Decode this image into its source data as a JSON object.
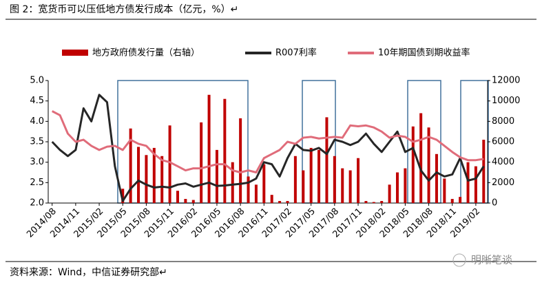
{
  "header": {
    "title": "图 2：宽货币可以压低地方债发行成本（亿元，%）↵"
  },
  "chart_data": {
    "type": "bar-line",
    "categories": [
      "2014/08",
      null,
      null,
      "2014/11",
      null,
      null,
      "2015/02",
      null,
      null,
      "2015/05",
      null,
      null,
      "2015/08",
      null,
      null,
      "2015/11",
      null,
      null,
      "2016/02",
      null,
      null,
      "2016/05",
      null,
      null,
      "2016/08",
      null,
      null,
      "2016/11",
      null,
      null,
      "2017/02",
      null,
      null,
      "2017/05",
      null,
      null,
      "2017/08",
      null,
      null,
      "2017/11",
      null,
      null,
      "2018/02",
      null,
      null,
      "2018/05",
      null,
      null,
      "2018/08",
      null,
      null,
      "2018/11",
      null,
      null,
      "2019/02",
      null
    ],
    "series": [
      {
        "name": "地方政府债发行量（右轴）",
        "color": "#c00000",
        "axis": "y2",
        "kind": "bar",
        "values": [
          null,
          null,
          null,
          null,
          null,
          null,
          null,
          null,
          null,
          1400,
          7300,
          5500,
          4700,
          5400,
          4600,
          7600,
          1200,
          400,
          300,
          7900,
          10600,
          5200,
          10200,
          4000,
          8300,
          2600,
          1800,
          3800,
          800,
          200,
          200,
          4600,
          3200,
          5400,
          5200,
          8400,
          4600,
          3400,
          3200,
          4400,
          200,
          100,
          200,
          1800,
          3000,
          3400,
          7500,
          8800,
          7400,
          4800,
          2400,
          400,
          600,
          4000,
          3600,
          6200
        ]
      },
      {
        "name": "R007利率",
        "color": "#262626",
        "kind": "line",
        "values": [
          3.5,
          3.3,
          3.15,
          3.3,
          4.32,
          4.0,
          4.65,
          4.47,
          2.9,
          2.05,
          2.35,
          2.55,
          2.45,
          2.38,
          2.4,
          2.38,
          2.45,
          2.48,
          2.4,
          2.45,
          2.5,
          2.42,
          2.43,
          2.45,
          2.47,
          2.5,
          2.6,
          3.0,
          2.95,
          2.65,
          3.1,
          3.45,
          3.3,
          3.28,
          3.35,
          3.2,
          3.55,
          3.5,
          3.42,
          3.5,
          3.7,
          3.45,
          3.25,
          3.5,
          3.75,
          3.25,
          3.35,
          2.8,
          2.55,
          2.75,
          2.65,
          2.7,
          3.1,
          2.55,
          2.6,
          2.9
        ]
      },
      {
        "name": "10年期国债到期收益率",
        "color": "#e06c7a",
        "kind": "line",
        "values": [
          4.25,
          4.15,
          3.7,
          3.5,
          3.55,
          3.4,
          3.3,
          3.38,
          3.4,
          3.3,
          3.55,
          3.45,
          3.4,
          3.2,
          3.05,
          3.0,
          2.9,
          2.8,
          2.85,
          2.85,
          2.9,
          2.95,
          2.95,
          2.8,
          2.75,
          2.8,
          2.75,
          3.1,
          3.2,
          3.3,
          3.5,
          3.45,
          3.6,
          3.62,
          3.58,
          3.6,
          3.62,
          3.6,
          3.9,
          3.88,
          3.9,
          3.85,
          3.75,
          3.6,
          3.65,
          3.62,
          3.5,
          3.55,
          3.62,
          3.55,
          3.4,
          3.25,
          3.12,
          3.05,
          3.05,
          3.08
        ]
      }
    ],
    "ylim": [
      2,
      5
    ],
    "yticks": [
      {
        "value": 2,
        "label": "2.0"
      },
      {
        "value": 2.5,
        "label": "2.5"
      },
      {
        "value": 3,
        "label": "3.0"
      },
      {
        "value": 3.5,
        "label": "3.5"
      },
      {
        "value": 4,
        "label": "4.0"
      },
      {
        "value": 4.5,
        "label": "4.5"
      },
      {
        "value": 5,
        "label": "5.0"
      }
    ],
    "y2lim": [
      0,
      12000
    ],
    "y2ticks": [
      0,
      2000,
      4000,
      6000,
      8000,
      10000,
      12000
    ],
    "legend": "top"
  },
  "footer": {
    "source": "资料来源：Wind，中信证券研究部↵",
    "watermark": "明晰笔谈"
  }
}
